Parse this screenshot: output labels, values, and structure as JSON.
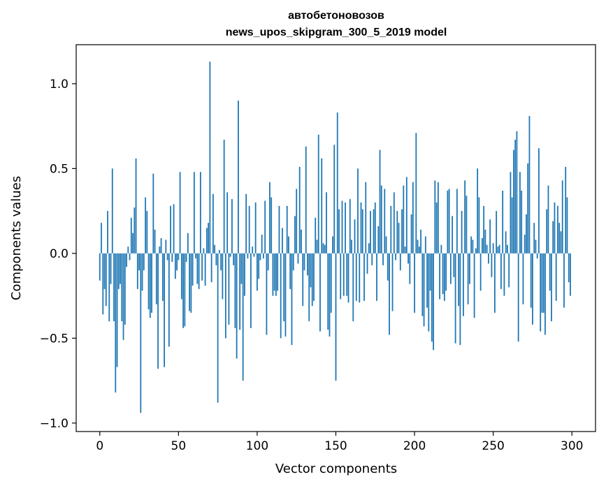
{
  "chart_data": {
    "type": "bar",
    "title": "автобетоновозов",
    "subtitle": "news_upos_skipgram_300_5_2019 model",
    "xlabel": "Vector components",
    "ylabel": "Components values",
    "xlim": [
      -15,
      315
    ],
    "ylim": [
      -1.05,
      1.23
    ],
    "xticks": [
      0,
      50,
      100,
      150,
      200,
      250,
      300
    ],
    "xtick_labels": [
      "0",
      "50",
      "100",
      "150",
      "200",
      "250",
      "300"
    ],
    "yticks": [
      -1.0,
      -0.5,
      0.0,
      0.5,
      1.0
    ],
    "ytick_labels": [
      "−1.0",
      "−0.5",
      "0.0",
      "0.5",
      "1.0"
    ],
    "bar_color": "#1f77b4",
    "grid": false,
    "legend": "none",
    "values": [
      -0.16,
      0.18,
      -0.36,
      -0.21,
      -0.31,
      0.25,
      -0.4,
      -0.18,
      0.5,
      -0.4,
      -0.82,
      -0.67,
      -0.21,
      -0.18,
      -0.4,
      -0.51,
      -0.42,
      -0.08,
      0.04,
      -0.04,
      0.21,
      0.12,
      0.27,
      0.56,
      -0.21,
      -0.1,
      -0.94,
      -0.22,
      -0.1,
      0.33,
      0.25,
      -0.33,
      -0.38,
      -0.35,
      0.47,
      0.14,
      -0.3,
      -0.68,
      0.04,
      0.09,
      -0.28,
      -0.67,
      0.08,
      -0.04,
      -0.55,
      0.28,
      -0.05,
      0.29,
      -0.15,
      -0.1,
      -0.04,
      0.48,
      -0.27,
      -0.44,
      -0.43,
      -0.05,
      0.12,
      -0.34,
      -0.35,
      -0.19,
      0.48,
      -0.03,
      -0.18,
      -0.21,
      0.48,
      -0.16,
      0.03,
      -0.19,
      0.15,
      0.18,
      1.13,
      -0.17,
      0.35,
      0.05,
      -0.07,
      -0.88,
      0.02,
      -0.1,
      -0.27,
      0.67,
      -0.5,
      0.36,
      -0.42,
      -0.02,
      0.32,
      -0.07,
      -0.44,
      -0.62,
      0.9,
      -0.45,
      -0.18,
      -0.75,
      -0.25,
      0.35,
      -0.03,
      0.28,
      -0.44,
      0.04,
      -0.02,
      0.3,
      -0.22,
      -0.15,
      -0.04,
      0.11,
      -0.03,
      0.31,
      -0.48,
      -0.1,
      0.42,
      0.33,
      -0.25,
      -0.22,
      -0.25,
      -0.22,
      0.28,
      -0.5,
      0.15,
      -0.4,
      -0.49,
      0.28,
      0.1,
      -0.21,
      -0.54,
      -0.1,
      0.22,
      0.38,
      -0.06,
      0.51,
      0.14,
      -0.31,
      -0.1,
      0.63,
      -0.13,
      -0.4,
      -0.2,
      -0.31,
      -0.28,
      0.21,
      0.08,
      0.7,
      -0.46,
      0.56,
      0.06,
      0.05,
      0.36,
      -0.45,
      -0.49,
      -0.35,
      0.1,
      0.64,
      -0.75,
      0.83,
      0.26,
      -0.27,
      0.31,
      -0.25,
      0.3,
      -0.25,
      -0.29,
      0.32,
      0.08,
      -0.4,
      0.2,
      -0.28,
      0.5,
      -0.29,
      0.3,
      0.26,
      -0.28,
      0.42,
      -0.12,
      0.06,
      0.25,
      -0.07,
      0.26,
      0.3,
      -0.28,
      0.16,
      0.61,
      0.4,
      -0.07,
      0.38,
      0.1,
      -0.16,
      -0.48,
      0.28,
      -0.34,
      0.36,
      -0.04,
      0.25,
      0.18,
      -0.1,
      0.26,
      0.4,
      0.04,
      0.45,
      -0.06,
      -0.18,
      0.23,
      0.42,
      -0.35,
      0.71,
      0.08,
      0.04,
      0.14,
      -0.37,
      -0.43,
      0.1,
      -0.32,
      -0.46,
      -0.22,
      -0.52,
      -0.57,
      0.43,
      0.3,
      0.42,
      -0.27,
      0.05,
      -0.24,
      -0.28,
      -0.22,
      0.37,
      0.38,
      -0.18,
      0.22,
      -0.14,
      -0.53,
      0.38,
      -0.31,
      -0.54,
      0.25,
      -0.37,
      0.43,
      0.34,
      -0.3,
      -0.18,
      0.1,
      0.08,
      -0.38,
      0.03,
      0.5,
      0.33,
      -0.22,
      0.09,
      0.28,
      0.14,
      0.05,
      -0.06,
      0.2,
      -0.14,
      0.06,
      -0.35,
      0.25,
      0.04,
      0.05,
      -0.21,
      0.37,
      -0.25,
      0.13,
      0.05,
      -0.2,
      0.48,
      0.33,
      0.61,
      0.67,
      0.72,
      -0.52,
      0.48,
      0.37,
      -0.3,
      0.11,
      0.23,
      0.53,
      0.81,
      -0.32,
      -0.42,
      0.18,
      0.08,
      -0.03,
      0.62,
      -0.46,
      -0.35,
      -0.35,
      -0.48,
      0.26,
      0.4,
      -0.22,
      -0.4,
      0.19,
      0.3,
      -0.28,
      0.28,
      0.18,
      0.13,
      0.43,
      -0.32,
      0.51,
      0.33,
      -0.17,
      -0.25
    ]
  }
}
